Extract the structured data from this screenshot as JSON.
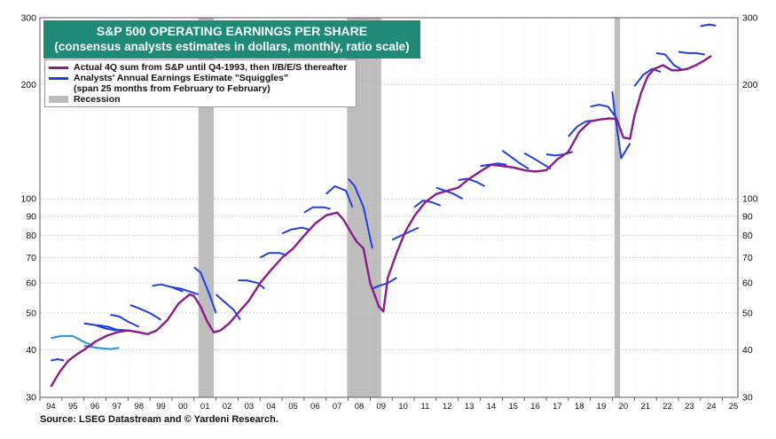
{
  "source_note": "Source: LSEG Datastream and © Yardeni Research.",
  "chart_data": {
    "type": "line",
    "title": "S&P 500 OPERATING EARNINGS PER SHARE",
    "subtitle": "(consensus analysts estimates in dollars, monthly, ratio scale)",
    "y_scale": "log",
    "ylim": [
      30,
      300
    ],
    "xlim": [
      1994.0,
      2025.7
    ],
    "grid": true,
    "legend_placement": "top-left",
    "y_ticks": [
      30,
      40,
      50,
      60,
      70,
      80,
      90,
      100,
      200,
      300
    ],
    "x_tick_labels": [
      "94",
      "95",
      "96",
      "97",
      "98",
      "99",
      "00",
      "01",
      "02",
      "03",
      "04",
      "05",
      "06",
      "07",
      "08",
      "09",
      "10",
      "11",
      "12",
      "13",
      "14",
      "15",
      "16",
      "17",
      "18",
      "19",
      "20",
      "21",
      "22",
      "23",
      "24",
      "25"
    ],
    "x_tick_years": [
      1994,
      1995,
      1996,
      1997,
      1998,
      1999,
      2000,
      2001,
      2002,
      2003,
      2004,
      2005,
      2006,
      2007,
      2008,
      2009,
      2010,
      2011,
      2012,
      2013,
      2014,
      2015,
      2016,
      2017,
      2018,
      2019,
      2020,
      2021,
      2022,
      2023,
      2024,
      2025
    ],
    "colors": {
      "actual": "#8b1a8b",
      "squiggle": "#1f3fe0",
      "squiggle_light": "#2a8de0",
      "recession": "#bdbdbd",
      "title_bg": "#1f8a78"
    },
    "legend": [
      {
        "key": "actual",
        "label": "Actual 4Q sum from S&P until Q4-1993, then I/B/E/S thereafter"
      },
      {
        "key": "squiggle",
        "label": "Analysts' Annual Earnings Estimate \"Squiggles\"",
        "label2": "(span 25 months from February to February)"
      },
      {
        "key": "recession",
        "label": "Recession"
      }
    ],
    "recessions": [
      [
        2001.2,
        2001.9
      ],
      [
        2007.95,
        2009.5
      ],
      [
        2020.1,
        2020.35
      ]
    ],
    "actual": {
      "x": [
        1994.5,
        1994.9,
        1995.3,
        1995.7,
        1996.0,
        1996.5,
        1997.0,
        1997.5,
        1998.0,
        1998.5,
        1998.9,
        1999.3,
        1999.8,
        2000.3,
        2000.8,
        2001.0,
        2001.3,
        2001.6,
        2001.9,
        2002.2,
        2002.6,
        2003.0,
        2003.5,
        2004.0,
        2004.5,
        2005.0,
        2005.5,
        2006.0,
        2006.5,
        2007.0,
        2007.5,
        2007.8,
        2008.1,
        2008.4,
        2008.7,
        2009.0,
        2009.4,
        2009.6,
        2009.8,
        2010.2,
        2010.6,
        2011.0,
        2011.5,
        2012.0,
        2012.5,
        2013.0,
        2013.5,
        2014.0,
        2014.5,
        2015.0,
        2015.5,
        2016.0,
        2016.5,
        2017.0,
        2017.5,
        2018.0,
        2018.5,
        2019.0,
        2019.5,
        2019.9,
        2020.2,
        2020.5,
        2020.8,
        2021.0,
        2021.3,
        2021.6,
        2021.9,
        2022.3,
        2022.7,
        2023.0,
        2023.4,
        2023.8,
        2024.2,
        2024.5
      ],
      "y": [
        32,
        35,
        37.5,
        39,
        40,
        42,
        43.5,
        44.5,
        45,
        44.5,
        44,
        45,
        48,
        53,
        56,
        55.5,
        52,
        47.5,
        44.5,
        45,
        47,
        50,
        54,
        60,
        65,
        70,
        74,
        80,
        86,
        90.5,
        92,
        88,
        82,
        77,
        74,
        60,
        52,
        50.5,
        62,
        72,
        82,
        90,
        98,
        103,
        105,
        107,
        113,
        118,
        123,
        122,
        121,
        119,
        118,
        119,
        127,
        133,
        150,
        160,
        162,
        163,
        162,
        145,
        144,
        165,
        190,
        210,
        220,
        225,
        218,
        218,
        220,
        225,
        232,
        238
      ]
    },
    "squiggles": [
      {
        "x": [
          1994.5,
          1994.8,
          1995.1
        ],
        "y": [
          37.5,
          37.8,
          37.5
        ]
      },
      {
        "x": [
          1994.5,
          1995.0,
          1995.5,
          1996.0,
          1996.4
        ],
        "y": [
          43,
          43.5,
          43.5,
          42,
          41
        ]
      },
      {
        "x": [
          1996.0,
          1996.5,
          1997.0,
          1997.5
        ],
        "y": [
          47,
          46.5,
          45.5,
          45
        ],
        "light": false
      },
      {
        "x": [
          1996.0,
          1996.6,
          1997.2,
          1997.6
        ],
        "y": [
          41,
          40.5,
          40.2,
          40.5
        ]
      },
      {
        "x": [
          1996.6,
          1997.1,
          1997.5,
          1998.0
        ],
        "y": [
          46.5,
          46,
          45.2,
          45
        ]
      },
      {
        "x": [
          1997.2,
          1997.6,
          1998.0,
          1998.5
        ],
        "y": [
          49.5,
          49,
          47.5,
          46
        ]
      },
      {
        "x": [
          1998.1,
          1998.5,
          1999.0,
          1999.5
        ],
        "y": [
          52.5,
          51.5,
          50,
          48
        ]
      },
      {
        "x": [
          1999.1,
          1999.5,
          2000.0,
          2000.5
        ],
        "y": [
          59,
          59.5,
          58.5,
          57
        ]
      },
      {
        "x": [
          2000.0,
          2000.4,
          2000.8,
          2001.2
        ],
        "y": [
          58.5,
          58,
          57,
          56
        ]
      },
      {
        "x": [
          2001.0,
          2001.3,
          2001.7,
          2002.0
        ],
        "y": [
          66,
          64,
          56,
          50
        ]
      },
      {
        "x": [
          2002.0,
          2002.3,
          2002.8,
          2003.1
        ],
        "y": [
          56,
          54,
          51,
          48
        ]
      },
      {
        "x": [
          2003.0,
          2003.4,
          2003.9,
          2004.2
        ],
        "y": [
          61,
          61,
          60,
          58
        ]
      },
      {
        "x": [
          2004.0,
          2004.4,
          2004.9,
          2005.2
        ],
        "y": [
          70,
          72,
          72,
          71
        ]
      },
      {
        "x": [
          2005.0,
          2005.4,
          2005.9,
          2006.2
        ],
        "y": [
          81,
          83,
          84,
          83
        ]
      },
      {
        "x": [
          2006.0,
          2006.4,
          2006.9,
          2007.2
        ],
        "y": [
          92,
          95,
          95,
          94
        ]
      },
      {
        "x": [
          2007.0,
          2007.4,
          2007.9,
          2008.2
        ],
        "y": [
          103,
          108,
          105,
          95
        ]
      },
      {
        "x": [
          2008.0,
          2008.3,
          2008.7,
          2009.1
        ],
        "y": [
          113,
          108,
          95,
          74
        ]
      },
      {
        "x": [
          2009.1,
          2009.4,
          2009.8,
          2010.2
        ],
        "y": [
          58,
          59,
          60,
          62
        ]
      },
      {
        "x": [
          2010.0,
          2010.4,
          2010.8,
          2011.2
        ],
        "y": [
          78,
          80,
          82,
          84
        ]
      },
      {
        "x": [
          2011.0,
          2011.4,
          2011.8,
          2012.2
        ],
        "y": [
          95,
          99,
          98,
          96
        ]
      },
      {
        "x": [
          2012.0,
          2012.4,
          2012.8,
          2013.2
        ],
        "y": [
          107,
          105,
          103,
          100
        ]
      },
      {
        "x": [
          2013.0,
          2013.4,
          2013.8,
          2014.2
        ],
        "y": [
          112,
          113,
          111,
          108
        ]
      },
      {
        "x": [
          2014.0,
          2014.4,
          2014.8,
          2015.2
        ],
        "y": [
          122,
          123,
          124,
          123
        ]
      },
      {
        "x": [
          2015.0,
          2015.4,
          2015.8,
          2016.2
        ],
        "y": [
          134,
          129,
          124,
          120
        ]
      },
      {
        "x": [
          2016.0,
          2016.4,
          2016.8,
          2017.2
        ],
        "y": [
          132,
          128,
          124,
          120
        ]
      },
      {
        "x": [
          2017.0,
          2017.4,
          2017.8,
          2018.2
        ],
        "y": [
          131,
          130,
          131,
          133
        ]
      },
      {
        "x": [
          2018.0,
          2018.4,
          2018.8,
          2019.2
        ],
        "y": [
          146,
          155,
          160,
          161
        ]
      },
      {
        "x": [
          2019.0,
          2019.4,
          2019.8,
          2020.2
        ],
        "y": [
          175,
          177,
          175,
          163
        ]
      },
      {
        "x": [
          2020.0,
          2020.1,
          2020.4,
          2020.8
        ],
        "y": [
          192,
          170,
          128,
          140
        ]
      },
      {
        "x": [
          2021.0,
          2021.4,
          2021.8,
          2022.2
        ],
        "y": [
          198,
          212,
          220,
          216
        ]
      },
      {
        "x": [
          2022.0,
          2022.4,
          2022.8,
          2023.2
        ],
        "y": [
          242,
          240,
          225,
          218
        ]
      },
      {
        "x": [
          2023.0,
          2023.4,
          2023.8,
          2024.2
        ],
        "y": [
          244,
          242,
          242,
          240
        ]
      },
      {
        "x": [
          2024.0,
          2024.4,
          2024.7
        ],
        "y": [
          285,
          288,
          286
        ]
      }
    ]
  }
}
